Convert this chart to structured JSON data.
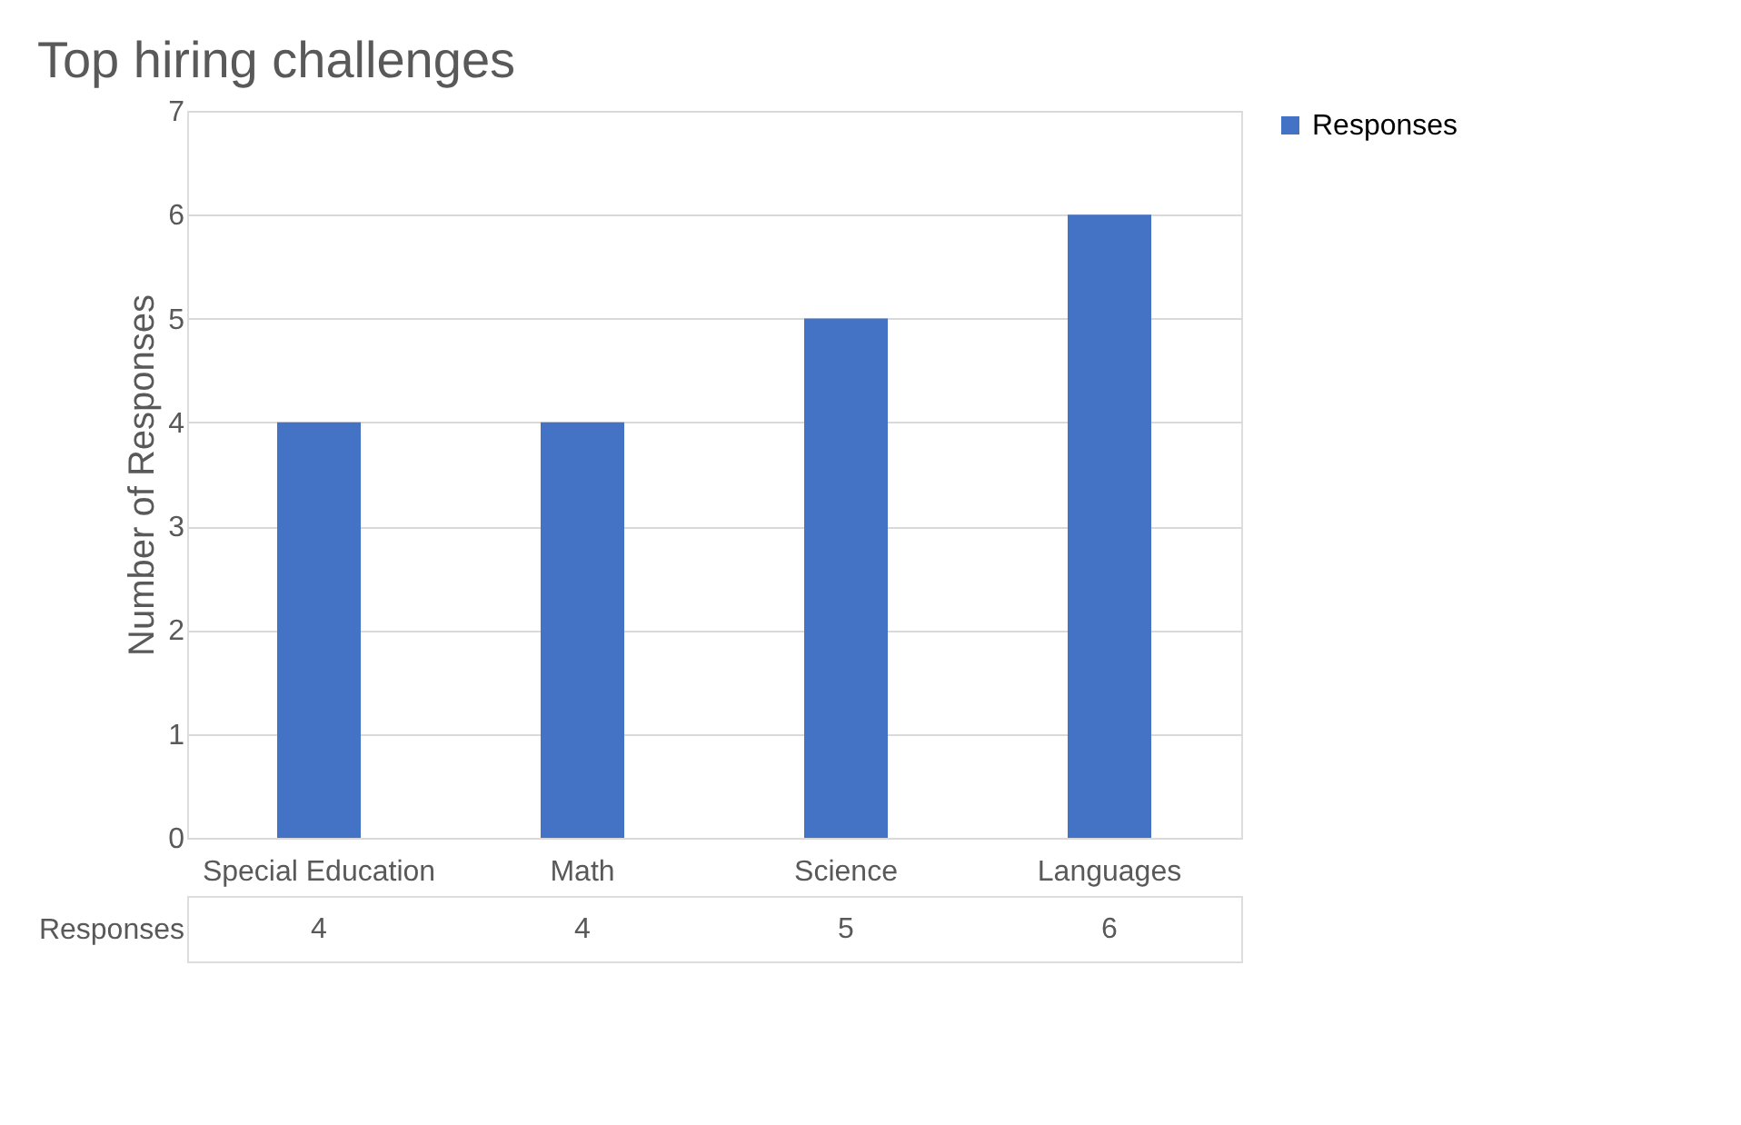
{
  "chart_data": {
    "type": "bar",
    "title": "Top hiring challenges",
    "ylabel": "Number of Responses",
    "categories": [
      "Special Education",
      "Math",
      "Science",
      "Languages"
    ],
    "series": [
      {
        "name": "Responses",
        "color": "#4472c4",
        "values": [
          4,
          4,
          5,
          6
        ]
      }
    ],
    "ylim": [
      0,
      7
    ],
    "yticks": [
      0,
      1,
      2,
      3,
      4,
      5,
      6,
      7
    ],
    "grid": "y",
    "legend": "right",
    "data_labels": true
  }
}
